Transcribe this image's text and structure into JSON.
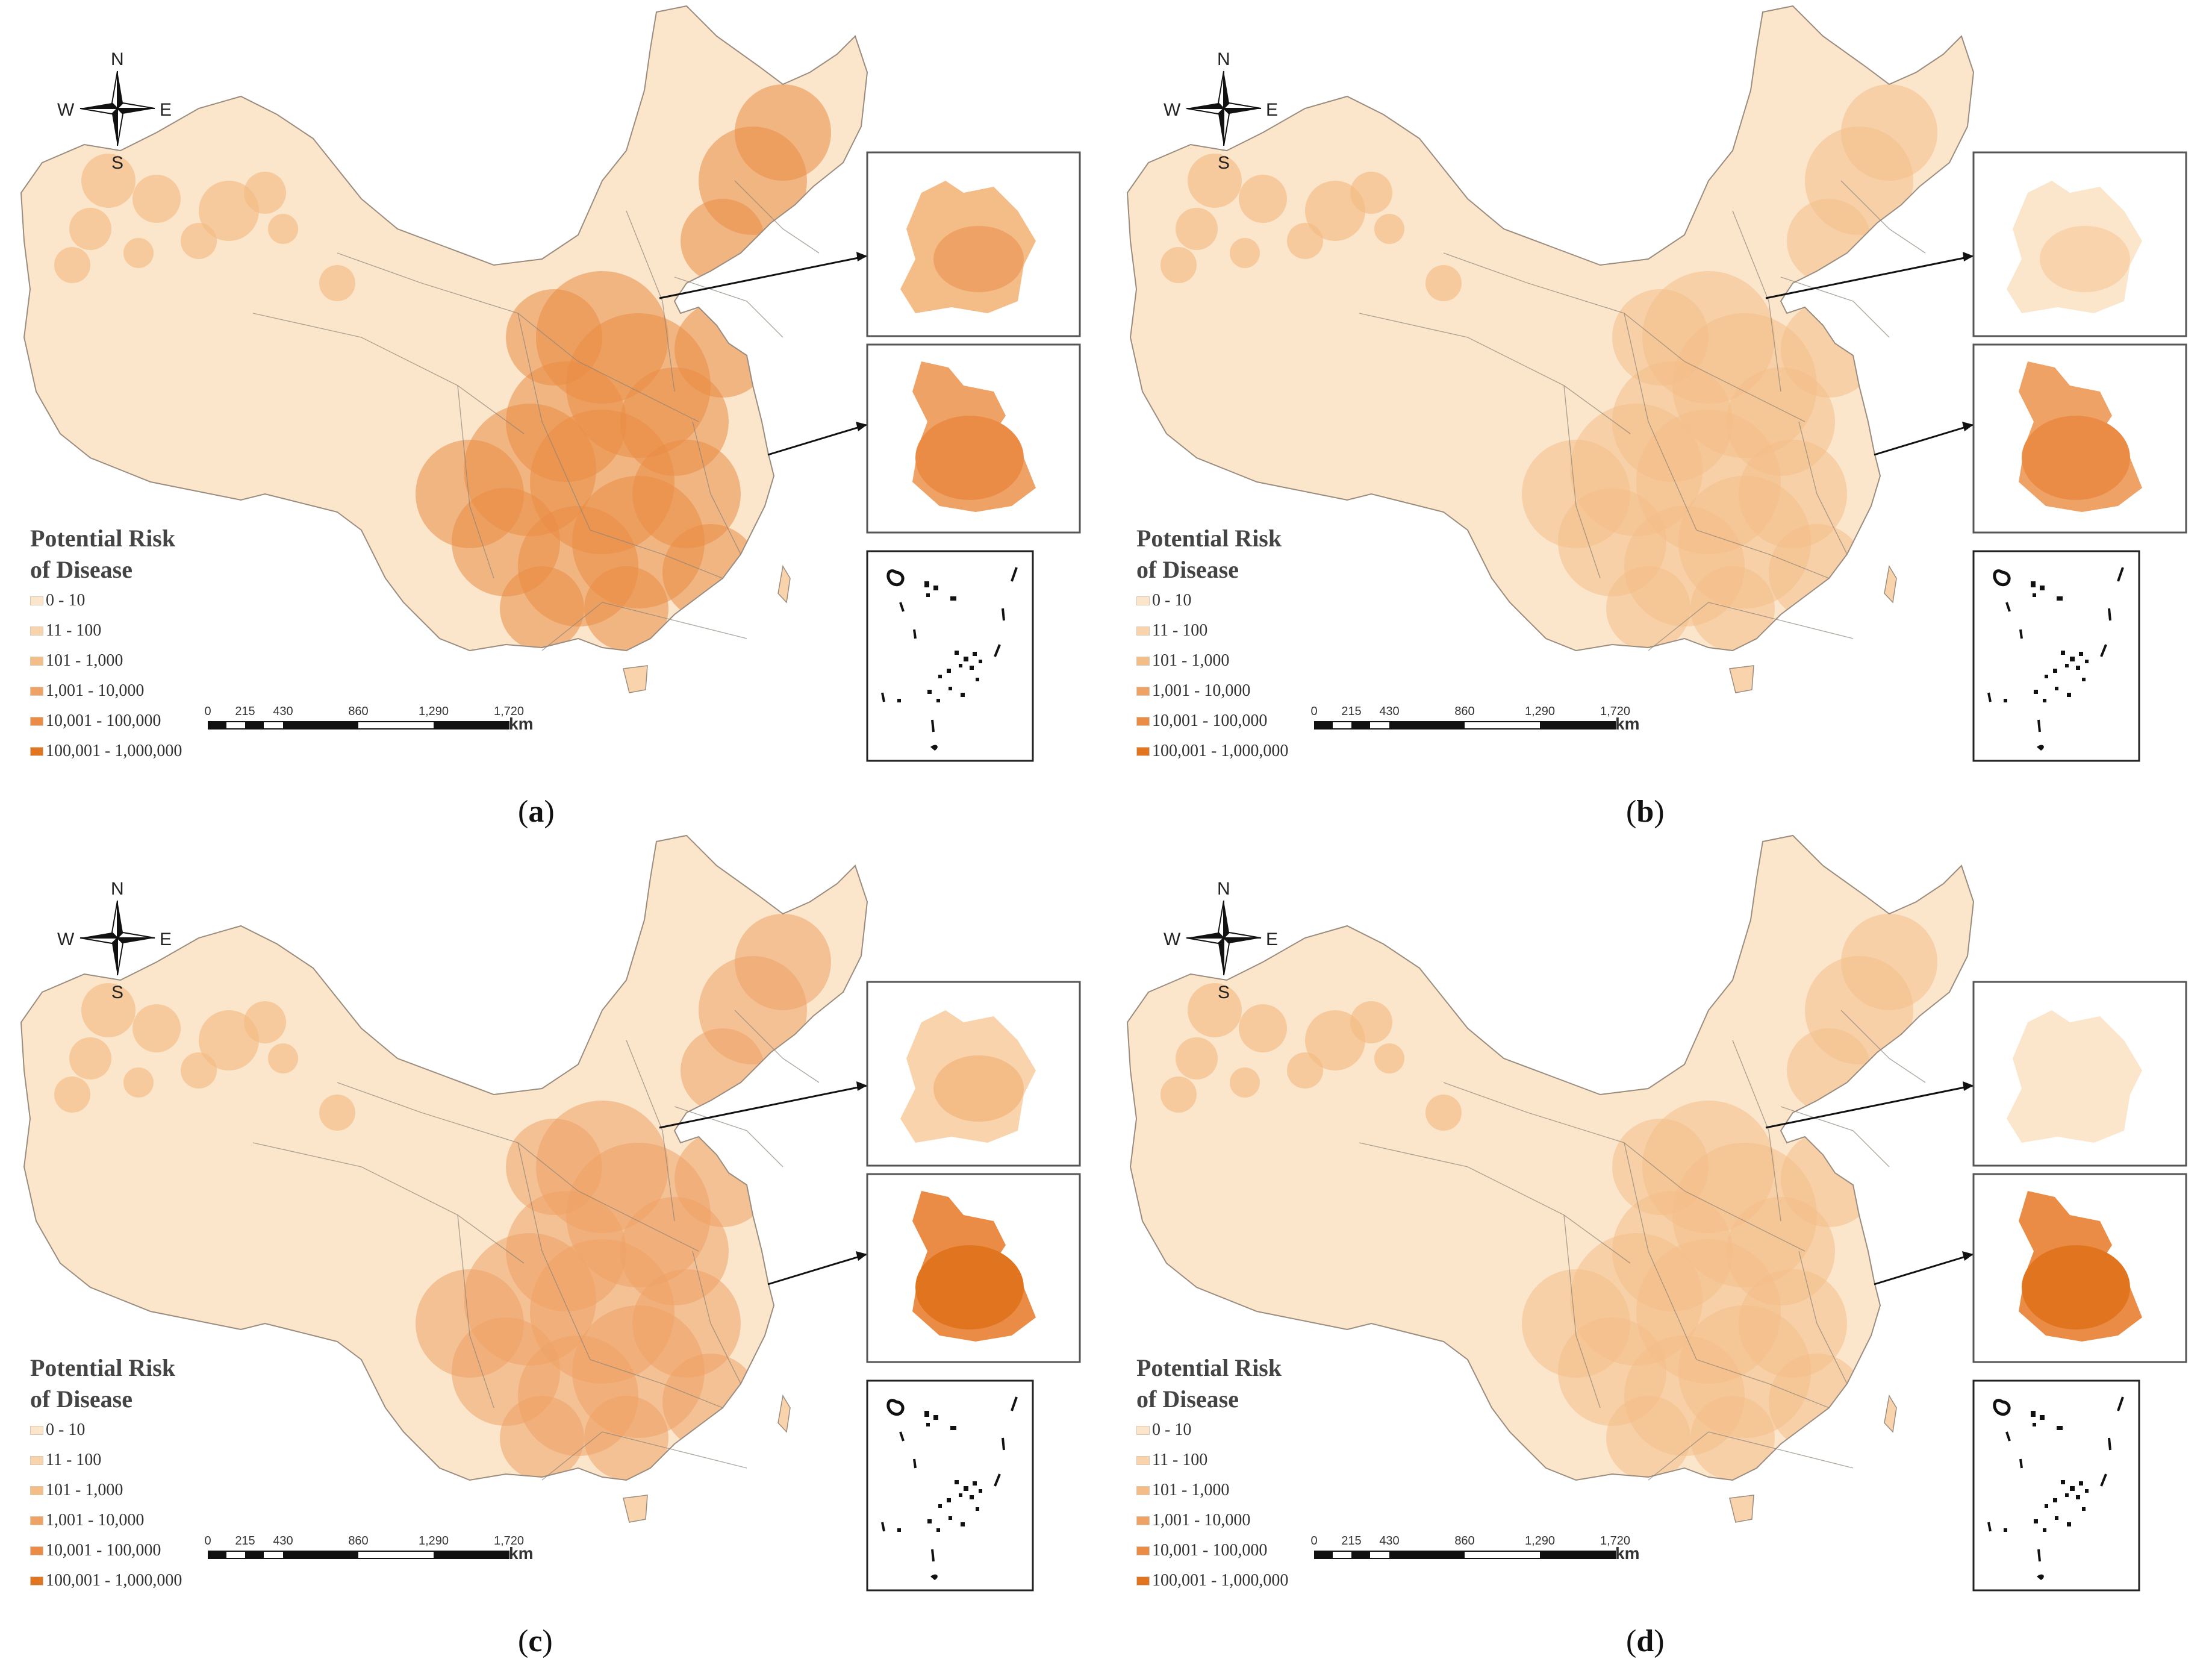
{
  "legend": {
    "title_line1": "Potential Risk",
    "title_line2": "of Disease",
    "classes": [
      {
        "label": "0 - 10",
        "color": "#fbe6cc"
      },
      {
        "label": "11 - 100",
        "color": "#f8d3ac"
      },
      {
        "label": "101 - 1,000",
        "color": "#f4bd88"
      },
      {
        "label": "1,001 - 10,000",
        "color": "#efa266"
      },
      {
        "label": "10,001 - 100,000",
        "color": "#ea8c45"
      },
      {
        "label": "100,001 - 1,000,000",
        "color": "#e0741f"
      }
    ]
  },
  "scale_bar": {
    "ticks": [
      "0",
      "215",
      "430",
      "860",
      "1,290",
      "1,720"
    ],
    "unit": "km"
  },
  "compass": {
    "n": "N",
    "s": "S",
    "e": "E",
    "w": "W"
  },
  "panels": [
    {
      "caption_open": "(",
      "caption_letter": "a",
      "caption_close": ")",
      "east_level": 4,
      "inset_top_level": 3,
      "inset_bottom_level": 4
    },
    {
      "caption_open": "(",
      "caption_letter": "b",
      "caption_close": ")",
      "east_level": 2,
      "inset_top_level": 1,
      "inset_bottom_level": 4
    },
    {
      "caption_open": "(",
      "caption_letter": "c",
      "caption_close": ")",
      "east_level": 3,
      "inset_top_level": 2,
      "inset_bottom_level": 5
    },
    {
      "caption_open": "(",
      "caption_letter": "d",
      "caption_close": ")",
      "east_level": 2,
      "inset_top_level": 0,
      "inset_bottom_level": 5
    }
  ]
}
